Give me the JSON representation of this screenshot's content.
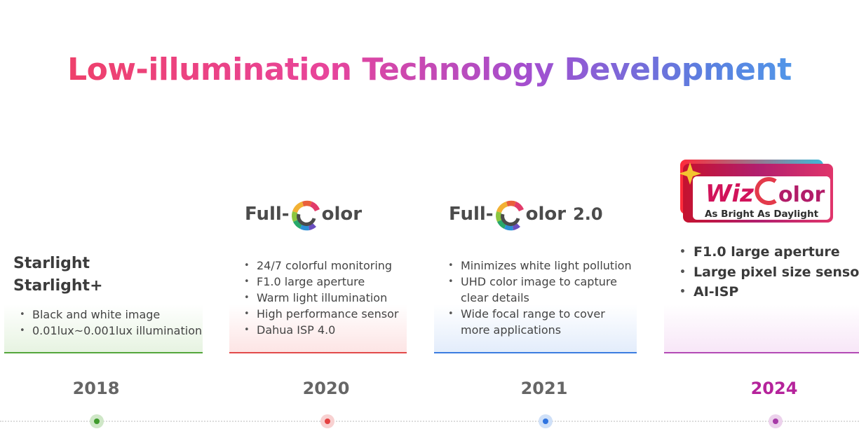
{
  "title": "Low-illumination Technology Development",
  "stages": [
    {
      "year": "2018",
      "headings": [
        "Starlight",
        "Starlight+"
      ],
      "bullets": [
        "Black and white image",
        "0.01lux~0.001lux illumination"
      ],
      "accent": "#54a63c"
    },
    {
      "year": "2020",
      "logo": {
        "prefix": "Full-",
        "suffix": "olor"
      },
      "bullets": [
        "24/7 colorful monitoring",
        "F1.0 large aperture",
        "Warm light illumination",
        "High performance sensor",
        "Dahua ISP 4.0"
      ],
      "accent": "#e24a4a"
    },
    {
      "year": "2021",
      "logo": {
        "prefix": "Full-",
        "suffix": "olor",
        "version": "2.0"
      },
      "bullets": [
        "Minimizes white light pollution",
        "UHD color image to capture",
        "clear details",
        "Wide focal range to cover",
        "more applications"
      ],
      "accent": "#3b7de0"
    },
    {
      "year": "2024",
      "logo": {
        "word1": "Wiz",
        "word2": "olor",
        "tagline": "As Bright As Daylight"
      },
      "bullets": [
        "F1.0 large aperture",
        "Large pixel size sensor",
        "AI-ISP"
      ],
      "accent": "#b5239b"
    }
  ]
}
